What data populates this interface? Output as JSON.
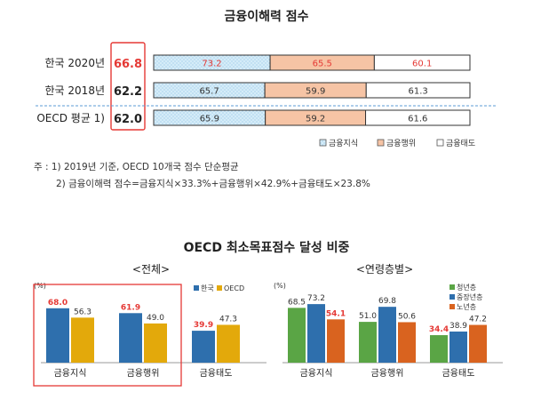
{
  "colors": {
    "knowledge": "#d5ecf8",
    "behavior": "#f6c4a5",
    "attitude": "#ffffff",
    "red": "#e53935",
    "korea": "#2e6fad",
    "oecd": "#e3a90b",
    "youth": "#5aa545",
    "middle": "#2e6fad",
    "senior": "#d9631f"
  },
  "chart_data": [
    {
      "type": "bar",
      "orientation": "horizontal-stacked",
      "title": "금융이해력 점수",
      "categories": [
        "한국 2020년",
        "한국 2018년",
        "OECD 평균 1)"
      ],
      "totals": [
        "66.8",
        "62.2",
        "62.0"
      ],
      "series": [
        {
          "name": "금융지식",
          "values": [
            "73.2",
            "65.7",
            "65.9"
          ]
        },
        {
          "name": "금융행위",
          "values": [
            "65.5",
            "59.9",
            "59.2"
          ]
        },
        {
          "name": "금융태도",
          "values": [
            "60.1",
            "61.3",
            "61.6"
          ]
        }
      ],
      "legend": "bottom-right"
    },
    {
      "type": "bar",
      "title": "<전체>",
      "unit": "(%)",
      "categories": [
        "금융지식",
        "금융행위",
        "금융태도"
      ],
      "series": [
        {
          "name": "한국",
          "values": [
            "68.0",
            "61.9",
            "39.9"
          ]
        },
        {
          "name": "OECD",
          "values": [
            "56.3",
            "49.0",
            "47.3"
          ]
        }
      ],
      "ylim": [
        0,
        80
      ],
      "legend": "top-right"
    },
    {
      "type": "bar",
      "title": "<연령층별>",
      "unit": "(%)",
      "categories": [
        "금융지식",
        "금융행위",
        "금융태도"
      ],
      "series": [
        {
          "name": "청년층",
          "values": [
            "68.5",
            "51.0",
            "34.4"
          ]
        },
        {
          "name": "중장년층",
          "values": [
            "73.2",
            "69.8",
            "38.9"
          ]
        },
        {
          "name": "노년층",
          "values": [
            "54.1",
            "50.6",
            "47.2"
          ]
        }
      ],
      "ylim": [
        0,
        80
      ],
      "legend": "top-right"
    }
  ],
  "text": {
    "section2_title": "OECD 최소목표점수 달성 비중",
    "note1": "주 : 1) 2019년 기준, OECD 10개국 점수 단순평균",
    "note2": "2) 금융이해력 점수=금융지식×33.3%+금융행위×42.9%+금융태도×23.8%"
  }
}
